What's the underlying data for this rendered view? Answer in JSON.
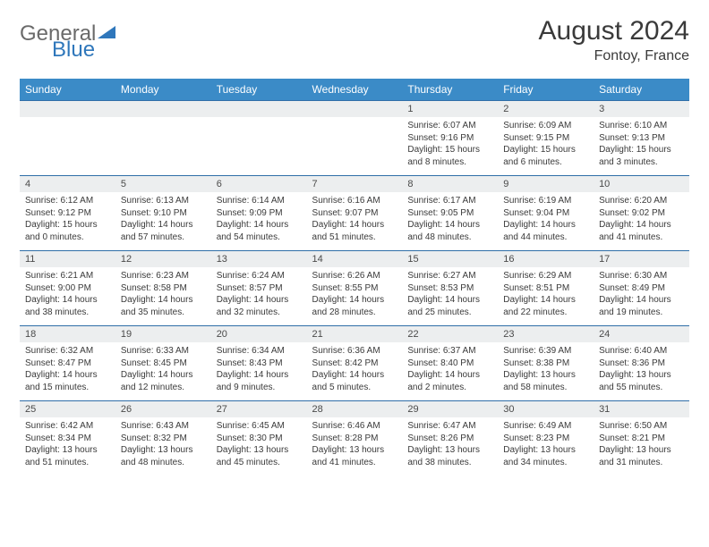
{
  "brand": {
    "part1": "General",
    "part2": "Blue"
  },
  "title": "August 2024",
  "location": "Fontoy, France",
  "colors": {
    "header_bg": "#3b8bc7",
    "header_text": "#ffffff",
    "daynum_bg": "#eceeef",
    "border": "#2f6ea8",
    "text": "#3a3a3a"
  },
  "day_names": [
    "Sunday",
    "Monday",
    "Tuesday",
    "Wednesday",
    "Thursday",
    "Friday",
    "Saturday"
  ],
  "weeks": [
    {
      "nums": [
        "",
        "",
        "",
        "",
        "1",
        "2",
        "3"
      ],
      "cells": [
        null,
        null,
        null,
        null,
        {
          "sunrise": "Sunrise: 6:07 AM",
          "sunset": "Sunset: 9:16 PM",
          "d1": "Daylight: 15 hours",
          "d2": "and 8 minutes."
        },
        {
          "sunrise": "Sunrise: 6:09 AM",
          "sunset": "Sunset: 9:15 PM",
          "d1": "Daylight: 15 hours",
          "d2": "and 6 minutes."
        },
        {
          "sunrise": "Sunrise: 6:10 AM",
          "sunset": "Sunset: 9:13 PM",
          "d1": "Daylight: 15 hours",
          "d2": "and 3 minutes."
        }
      ]
    },
    {
      "nums": [
        "4",
        "5",
        "6",
        "7",
        "8",
        "9",
        "10"
      ],
      "cells": [
        {
          "sunrise": "Sunrise: 6:12 AM",
          "sunset": "Sunset: 9:12 PM",
          "d1": "Daylight: 15 hours",
          "d2": "and 0 minutes."
        },
        {
          "sunrise": "Sunrise: 6:13 AM",
          "sunset": "Sunset: 9:10 PM",
          "d1": "Daylight: 14 hours",
          "d2": "and 57 minutes."
        },
        {
          "sunrise": "Sunrise: 6:14 AM",
          "sunset": "Sunset: 9:09 PM",
          "d1": "Daylight: 14 hours",
          "d2": "and 54 minutes."
        },
        {
          "sunrise": "Sunrise: 6:16 AM",
          "sunset": "Sunset: 9:07 PM",
          "d1": "Daylight: 14 hours",
          "d2": "and 51 minutes."
        },
        {
          "sunrise": "Sunrise: 6:17 AM",
          "sunset": "Sunset: 9:05 PM",
          "d1": "Daylight: 14 hours",
          "d2": "and 48 minutes."
        },
        {
          "sunrise": "Sunrise: 6:19 AM",
          "sunset": "Sunset: 9:04 PM",
          "d1": "Daylight: 14 hours",
          "d2": "and 44 minutes."
        },
        {
          "sunrise": "Sunrise: 6:20 AM",
          "sunset": "Sunset: 9:02 PM",
          "d1": "Daylight: 14 hours",
          "d2": "and 41 minutes."
        }
      ]
    },
    {
      "nums": [
        "11",
        "12",
        "13",
        "14",
        "15",
        "16",
        "17"
      ],
      "cells": [
        {
          "sunrise": "Sunrise: 6:21 AM",
          "sunset": "Sunset: 9:00 PM",
          "d1": "Daylight: 14 hours",
          "d2": "and 38 minutes."
        },
        {
          "sunrise": "Sunrise: 6:23 AM",
          "sunset": "Sunset: 8:58 PM",
          "d1": "Daylight: 14 hours",
          "d2": "and 35 minutes."
        },
        {
          "sunrise": "Sunrise: 6:24 AM",
          "sunset": "Sunset: 8:57 PM",
          "d1": "Daylight: 14 hours",
          "d2": "and 32 minutes."
        },
        {
          "sunrise": "Sunrise: 6:26 AM",
          "sunset": "Sunset: 8:55 PM",
          "d1": "Daylight: 14 hours",
          "d2": "and 28 minutes."
        },
        {
          "sunrise": "Sunrise: 6:27 AM",
          "sunset": "Sunset: 8:53 PM",
          "d1": "Daylight: 14 hours",
          "d2": "and 25 minutes."
        },
        {
          "sunrise": "Sunrise: 6:29 AM",
          "sunset": "Sunset: 8:51 PM",
          "d1": "Daylight: 14 hours",
          "d2": "and 22 minutes."
        },
        {
          "sunrise": "Sunrise: 6:30 AM",
          "sunset": "Sunset: 8:49 PM",
          "d1": "Daylight: 14 hours",
          "d2": "and 19 minutes."
        }
      ]
    },
    {
      "nums": [
        "18",
        "19",
        "20",
        "21",
        "22",
        "23",
        "24"
      ],
      "cells": [
        {
          "sunrise": "Sunrise: 6:32 AM",
          "sunset": "Sunset: 8:47 PM",
          "d1": "Daylight: 14 hours",
          "d2": "and 15 minutes."
        },
        {
          "sunrise": "Sunrise: 6:33 AM",
          "sunset": "Sunset: 8:45 PM",
          "d1": "Daylight: 14 hours",
          "d2": "and 12 minutes."
        },
        {
          "sunrise": "Sunrise: 6:34 AM",
          "sunset": "Sunset: 8:43 PM",
          "d1": "Daylight: 14 hours",
          "d2": "and 9 minutes."
        },
        {
          "sunrise": "Sunrise: 6:36 AM",
          "sunset": "Sunset: 8:42 PM",
          "d1": "Daylight: 14 hours",
          "d2": "and 5 minutes."
        },
        {
          "sunrise": "Sunrise: 6:37 AM",
          "sunset": "Sunset: 8:40 PM",
          "d1": "Daylight: 14 hours",
          "d2": "and 2 minutes."
        },
        {
          "sunrise": "Sunrise: 6:39 AM",
          "sunset": "Sunset: 8:38 PM",
          "d1": "Daylight: 13 hours",
          "d2": "and 58 minutes."
        },
        {
          "sunrise": "Sunrise: 6:40 AM",
          "sunset": "Sunset: 8:36 PM",
          "d1": "Daylight: 13 hours",
          "d2": "and 55 minutes."
        }
      ]
    },
    {
      "nums": [
        "25",
        "26",
        "27",
        "28",
        "29",
        "30",
        "31"
      ],
      "cells": [
        {
          "sunrise": "Sunrise: 6:42 AM",
          "sunset": "Sunset: 8:34 PM",
          "d1": "Daylight: 13 hours",
          "d2": "and 51 minutes."
        },
        {
          "sunrise": "Sunrise: 6:43 AM",
          "sunset": "Sunset: 8:32 PM",
          "d1": "Daylight: 13 hours",
          "d2": "and 48 minutes."
        },
        {
          "sunrise": "Sunrise: 6:45 AM",
          "sunset": "Sunset: 8:30 PM",
          "d1": "Daylight: 13 hours",
          "d2": "and 45 minutes."
        },
        {
          "sunrise": "Sunrise: 6:46 AM",
          "sunset": "Sunset: 8:28 PM",
          "d1": "Daylight: 13 hours",
          "d2": "and 41 minutes."
        },
        {
          "sunrise": "Sunrise: 6:47 AM",
          "sunset": "Sunset: 8:26 PM",
          "d1": "Daylight: 13 hours",
          "d2": "and 38 minutes."
        },
        {
          "sunrise": "Sunrise: 6:49 AM",
          "sunset": "Sunset: 8:23 PM",
          "d1": "Daylight: 13 hours",
          "d2": "and 34 minutes."
        },
        {
          "sunrise": "Sunrise: 6:50 AM",
          "sunset": "Sunset: 8:21 PM",
          "d1": "Daylight: 13 hours",
          "d2": "and 31 minutes."
        }
      ]
    }
  ]
}
